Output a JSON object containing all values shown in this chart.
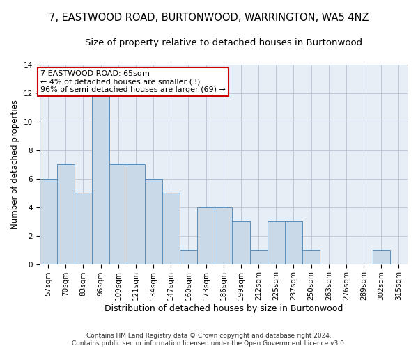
{
  "title": "7, EASTWOOD ROAD, BURTONWOOD, WARRINGTON, WA5 4NZ",
  "subtitle": "Size of property relative to detached houses in Burtonwood",
  "xlabel": "Distribution of detached houses by size in Burtonwood",
  "ylabel": "Number of detached properties",
  "bins": [
    "57sqm",
    "70sqm",
    "83sqm",
    "96sqm",
    "109sqm",
    "121sqm",
    "134sqm",
    "147sqm",
    "160sqm",
    "173sqm",
    "186sqm",
    "199sqm",
    "212sqm",
    "225sqm",
    "237sqm",
    "250sqm",
    "263sqm",
    "276sqm",
    "289sqm",
    "302sqm",
    "315sqm"
  ],
  "values": [
    6,
    7,
    5,
    12,
    7,
    7,
    6,
    5,
    1,
    4,
    4,
    3,
    1,
    3,
    3,
    1,
    0,
    0,
    0,
    1,
    0
  ],
  "bar_color": "#c9d9e8",
  "bar_edge_color": "#5b8db8",
  "grid_color": "#c0c8d8",
  "background_color": "#e8eef5",
  "annotation_text": "7 EASTWOOD ROAD: 65sqm\n← 4% of detached houses are smaller (3)\n96% of semi-detached houses are larger (69) →",
  "annotation_box_color": "white",
  "annotation_box_edge_color": "#cc0000",
  "subject_vline_color": "#cc0000",
  "ylim": [
    0,
    14
  ],
  "yticks": [
    0,
    2,
    4,
    6,
    8,
    10,
    12,
    14
  ],
  "footer": "Contains HM Land Registry data © Crown copyright and database right 2024.\nContains public sector information licensed under the Open Government Licence v3.0.",
  "title_fontsize": 10.5,
  "subtitle_fontsize": 9.5,
  "xlabel_fontsize": 9,
  "ylabel_fontsize": 8.5,
  "tick_fontsize": 7.5,
  "footer_fontsize": 6.5,
  "annotation_fontsize": 8
}
